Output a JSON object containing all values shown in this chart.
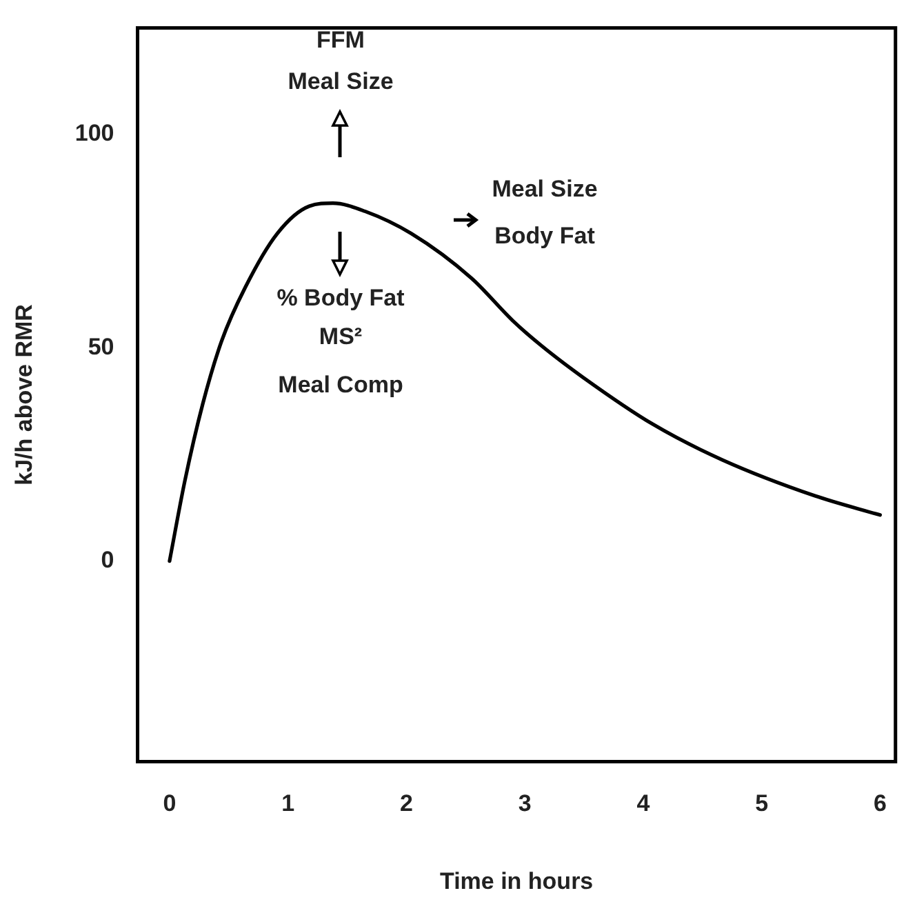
{
  "chart_data": {
    "type": "line",
    "xlabel": "Time in hours",
    "ylabel": "kJ/h above RMR",
    "x": [
      0,
      0.13,
      0.28,
      0.44,
      0.64,
      0.91,
      1.18,
      1.38,
      1.65,
      2.04,
      2.55,
      2.9,
      3.14,
      3.49,
      4.08,
      4.67,
      5.45,
      6.0
    ],
    "series": [
      {
        "color": "#000000",
        "values": [
          0,
          18.9,
          36.8,
          51.6,
          64.2,
          76.8,
          83.2,
          83.9,
          82,
          76.8,
          66.3,
          56.3,
          50.5,
          43.1,
          32.1,
          23.7,
          15.3,
          10.8
        ]
      }
    ],
    "xlim": [
      -0.27,
      6.13
    ],
    "xticks": [
      0,
      1,
      2,
      3,
      4,
      5,
      6
    ],
    "ylim": [
      -47,
      125
    ],
    "yticks": [
      0,
      50,
      100
    ],
    "grid": false,
    "legend": false,
    "marker": "none",
    "line_style": "solid",
    "annotations": [
      "FFM",
      "Meal Size",
      "% Body Fat",
      "MS²",
      "Meal Comp",
      "Meal Size",
      "Body Fat"
    ]
  }
}
